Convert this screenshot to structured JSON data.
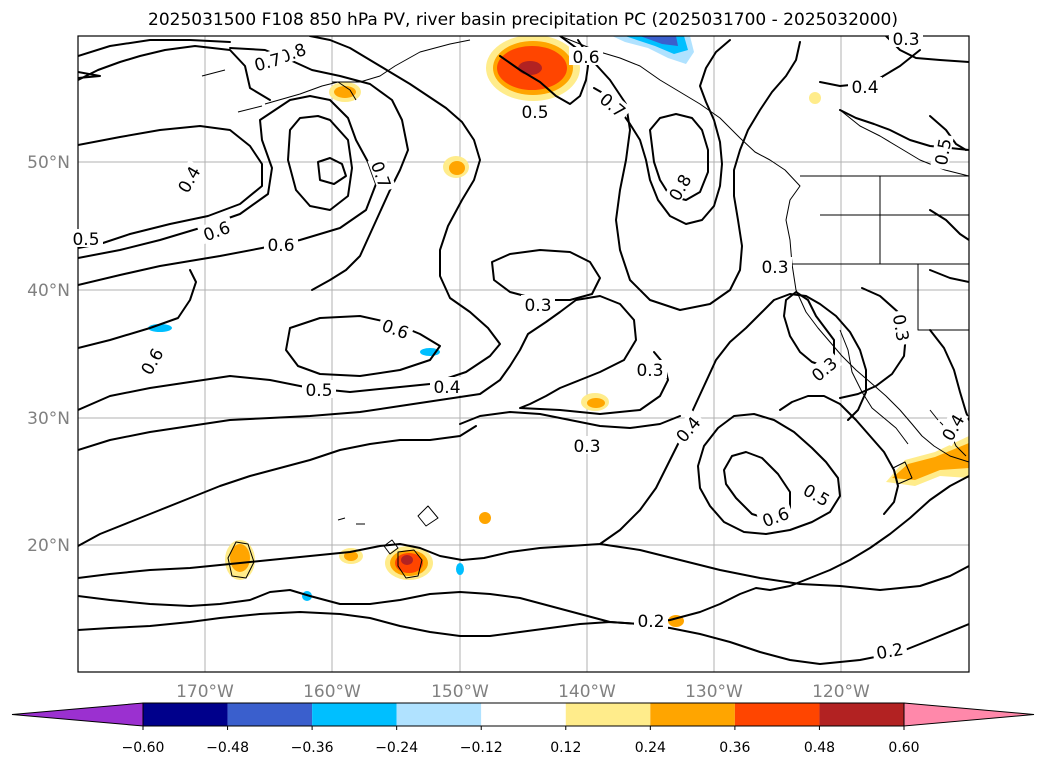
{
  "title": "2025031500 F108 850 hPa PV, river basin precipitation PC (2025031700 - 2025032000)",
  "longitude_labels": [
    "170°W",
    "160°W",
    "150°W",
    "140°W",
    "130°W",
    "120°W"
  ],
  "latitude_labels": [
    "50°N",
    "40°N",
    "30°N",
    "20°N"
  ],
  "contour_labels": [
    "0.8",
    "0.7",
    "0.6",
    "0.5",
    "0.7",
    "0.8",
    "0.4",
    "0.6",
    "0.6",
    "0.7",
    "0.5",
    "0.4",
    "0.5",
    "0.3",
    "0.6",
    "0.6",
    "0.5",
    "0.4",
    "0.3",
    "0.3",
    "0.4",
    "0.3",
    "0.5",
    "0.6",
    "0.3",
    "0.3",
    "0.4",
    "0.2",
    "0.2",
    "0.3"
  ],
  "colorbar": {
    "tick_labels": [
      "−0.60",
      "−0.48",
      "−0.36",
      "−0.24",
      "−0.12",
      "0.12",
      "0.24",
      "0.36",
      "0.48",
      "0.60"
    ],
    "under_color": "#9b30d0",
    "over_color": "#ff88aa",
    "colors": [
      "#00008b",
      "#3a5fcd",
      "#00bfff",
      "#b0e2ff",
      "#ffffff",
      "#ffec8b",
      "#ffa500",
      "#ff4500",
      "#b22222"
    ]
  }
}
